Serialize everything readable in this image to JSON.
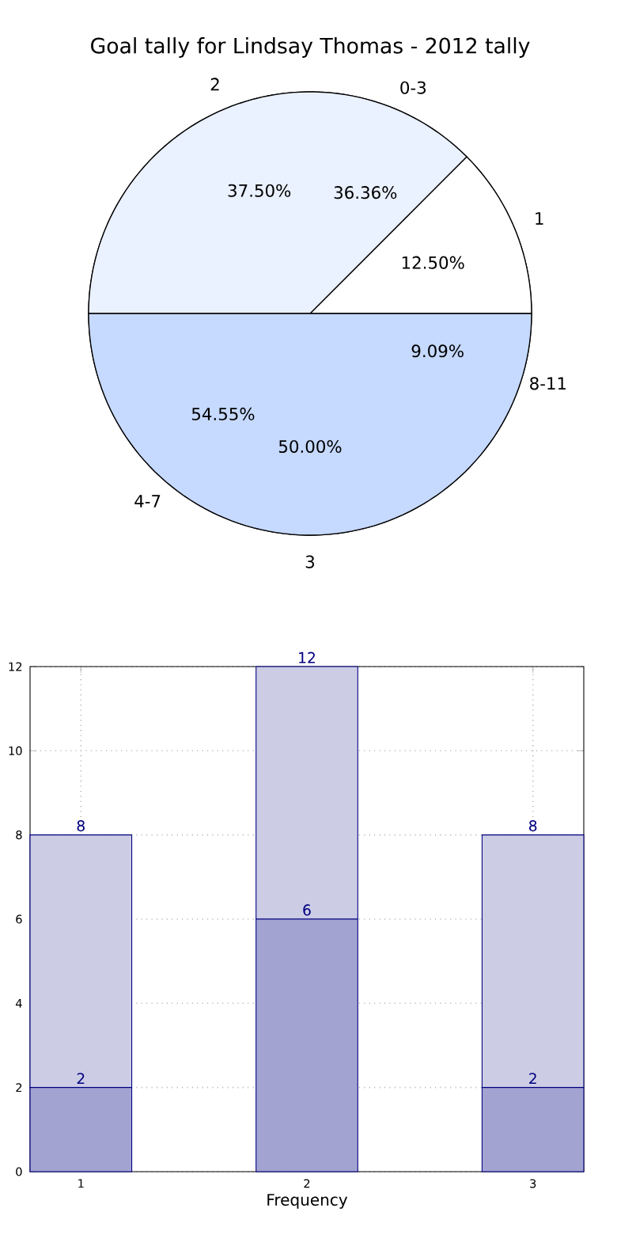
{
  "chart_data": [
    {
      "type": "pie",
      "title": "Goal tally for Lindsay Thomas - 2012 tally",
      "categories": [
        "1",
        "2",
        "3"
      ],
      "values": [
        12.5,
        37.5,
        50
      ],
      "colors": [
        "#ffffff",
        "#eaf1ff",
        "#c6d9ff"
      ],
      "value_labels": [
        "12.50%",
        "37.50%",
        "50.00%"
      ]
    },
    {
      "type": "pie",
      "categories": [
        "0-3",
        "4-7",
        "8-11"
      ],
      "values": [
        36.36,
        54.55,
        9.09
      ],
      "colors": [
        "#eaf1ff",
        "#c6d9ff",
        "#c6d9ff"
      ],
      "value_labels": [
        "36.36%",
        "54.55%",
        "9.09%"
      ]
    },
    {
      "type": "bar",
      "x": [
        1,
        2,
        3
      ],
      "xlabel": "Frequency",
      "xlim": [
        0.775,
        3.225
      ],
      "xticks": [
        1,
        2,
        3
      ],
      "ylim": [
        0,
        12
      ],
      "yticks": [
        0,
        2,
        4,
        6,
        8,
        10,
        12
      ],
      "grid": true,
      "stacked": true,
      "totals": [
        "8",
        "12",
        "8"
      ],
      "series": [
        {
          "color": "#a3a3d1",
          "values": [
            2,
            6,
            2
          ],
          "value_labels": [
            "2",
            "6",
            "2"
          ]
        },
        {
          "color": "#ccccE5",
          "values": [
            6,
            6,
            6
          ]
        }
      ]
    }
  ]
}
